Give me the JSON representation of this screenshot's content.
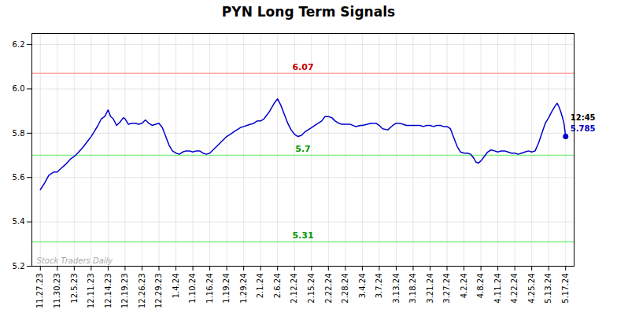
{
  "chart_data": {
    "type": "line",
    "title": "PYN Long Term Signals",
    "color": "#0000cc",
    "grid": true,
    "xlim": [
      -0.5,
      31.5
    ],
    "xticks": [
      {
        "value": 0,
        "label": "11.27.23"
      },
      {
        "value": 1,
        "label": "11.30.23"
      },
      {
        "value": 2,
        "label": "12.5.23"
      },
      {
        "value": 3,
        "label": "12.11.23"
      },
      {
        "value": 4,
        "label": "12.14.23"
      },
      {
        "value": 5,
        "label": "12.19.23"
      },
      {
        "value": 6,
        "label": "12.26.23"
      },
      {
        "value": 7,
        "label": "12.29.23"
      },
      {
        "value": 8,
        "label": "1.4.24"
      },
      {
        "value": 9,
        "label": "1.10.24"
      },
      {
        "value": 10,
        "label": "1.16.24"
      },
      {
        "value": 11,
        "label": "1.19.24"
      },
      {
        "value": 12,
        "label": "1.29.24"
      },
      {
        "value": 13,
        "label": "2.1.24"
      },
      {
        "value": 14,
        "label": "2.6.24"
      },
      {
        "value": 15,
        "label": "2.12.24"
      },
      {
        "value": 16,
        "label": "2.15.24"
      },
      {
        "value": 17,
        "label": "2.22.24"
      },
      {
        "value": 18,
        "label": "2.28.24"
      },
      {
        "value": 19,
        "label": "3.4.24"
      },
      {
        "value": 20,
        "label": "3.7.24"
      },
      {
        "value": 21,
        "label": "3.13.24"
      },
      {
        "value": 22,
        "label": "3.18.24"
      },
      {
        "value": 23,
        "label": "3.21.24"
      },
      {
        "value": 24,
        "label": "3.27.24"
      },
      {
        "value": 25,
        "label": "4.2.24"
      },
      {
        "value": 26,
        "label": "4.8.24"
      },
      {
        "value": 27,
        "label": "4.11.24"
      },
      {
        "value": 28,
        "label": "4.22.24"
      },
      {
        "value": 29,
        "label": "4.25.24"
      },
      {
        "value": 30,
        "label": "5.13.24"
      },
      {
        "value": 31,
        "label": "5.17.24"
      }
    ],
    "ylim": [
      5.2,
      6.25
    ],
    "yticks": [
      5.2,
      5.4,
      5.6,
      5.8,
      {
        "value": 6.0,
        "label": "6.0"
      },
      6.2
    ],
    "x": [
      0.0,
      0.25,
      0.5,
      0.8,
      1.0,
      1.2,
      1.5,
      1.8,
      2.0,
      2.2,
      2.5,
      2.8,
      3.0,
      3.2,
      3.4,
      3.6,
      3.8,
      4.0,
      4.15,
      4.3,
      4.5,
      4.7,
      4.9,
      5.0,
      5.2,
      5.4,
      5.6,
      5.8,
      6.0,
      6.2,
      6.4,
      6.6,
      6.8,
      7.0,
      7.2,
      7.4,
      7.6,
      7.8,
      8.0,
      8.2,
      8.4,
      8.6,
      8.8,
      9.0,
      9.2,
      9.4,
      9.6,
      9.8,
      10.0,
      10.2,
      10.4,
      10.6,
      10.8,
      11.0,
      11.2,
      11.4,
      11.6,
      11.8,
      12.0,
      12.2,
      12.4,
      12.6,
      12.8,
      13.0,
      13.2,
      13.5,
      13.8,
      14.0,
      14.2,
      14.4,
      14.6,
      14.8,
      15.0,
      15.2,
      15.4,
      15.6,
      15.8,
      16.0,
      16.2,
      16.4,
      16.6,
      16.8,
      17.0,
      17.2,
      17.4,
      17.6,
      17.8,
      18.0,
      18.3,
      18.6,
      18.9,
      19.0,
      19.3,
      19.5,
      19.8,
      20.0,
      20.2,
      20.5,
      20.8,
      21.0,
      21.2,
      21.4,
      21.6,
      21.8,
      22.0,
      22.2,
      22.4,
      22.6,
      22.8,
      23.0,
      23.2,
      23.4,
      23.6,
      23.8,
      24.0,
      24.2,
      24.4,
      24.6,
      24.8,
      25.0,
      25.2,
      25.4,
      25.5,
      25.6,
      25.7,
      25.85,
      26.0,
      26.2,
      26.4,
      26.6,
      26.8,
      27.0,
      27.2,
      27.4,
      27.6,
      27.8,
      28.0,
      28.2,
      28.4,
      28.6,
      28.8,
      29.0,
      29.2,
      29.4,
      29.6,
      29.8,
      30.0,
      30.2,
      30.4,
      30.5,
      30.6,
      30.7,
      30.8,
      30.9,
      31.0
    ],
    "values": [
      5.545,
      5.575,
      5.61,
      5.625,
      5.625,
      5.64,
      5.66,
      5.685,
      5.695,
      5.71,
      5.735,
      5.765,
      5.785,
      5.81,
      5.835,
      5.865,
      5.875,
      5.905,
      5.875,
      5.865,
      5.835,
      5.85,
      5.87,
      5.865,
      5.84,
      5.845,
      5.845,
      5.84,
      5.845,
      5.86,
      5.845,
      5.835,
      5.84,
      5.845,
      5.825,
      5.785,
      5.745,
      5.72,
      5.71,
      5.705,
      5.715,
      5.72,
      5.72,
      5.715,
      5.72,
      5.72,
      5.71,
      5.705,
      5.71,
      5.725,
      5.74,
      5.755,
      5.77,
      5.785,
      5.795,
      5.805,
      5.815,
      5.825,
      5.83,
      5.835,
      5.84,
      5.845,
      5.855,
      5.855,
      5.865,
      5.895,
      5.935,
      5.955,
      5.925,
      5.885,
      5.845,
      5.815,
      5.795,
      5.785,
      5.79,
      5.805,
      5.815,
      5.825,
      5.835,
      5.845,
      5.855,
      5.875,
      5.875,
      5.87,
      5.855,
      5.845,
      5.84,
      5.84,
      5.84,
      5.83,
      5.835,
      5.835,
      5.84,
      5.845,
      5.845,
      5.835,
      5.82,
      5.815,
      5.835,
      5.845,
      5.845,
      5.84,
      5.835,
      5.835,
      5.835,
      5.835,
      5.835,
      5.83,
      5.835,
      5.835,
      5.83,
      5.835,
      5.835,
      5.83,
      5.83,
      5.82,
      5.78,
      5.74,
      5.715,
      5.71,
      5.71,
      5.705,
      5.695,
      5.685,
      5.67,
      5.665,
      5.675,
      5.695,
      5.715,
      5.725,
      5.72,
      5.715,
      5.72,
      5.72,
      5.715,
      5.71,
      5.71,
      5.705,
      5.71,
      5.715,
      5.72,
      5.715,
      5.72,
      5.755,
      5.8,
      5.845,
      5.87,
      5.9,
      5.925,
      5.935,
      5.92,
      5.9,
      5.875,
      5.845,
      5.785
    ],
    "reference_lines": [
      {
        "value": 6.07,
        "label": "6.07",
        "color": "#ffaaaa",
        "label_color": "#cc0000"
      },
      {
        "value": 5.7,
        "label": "5.7",
        "color": "#88ee88",
        "label_color": "#009900"
      },
      {
        "value": 5.31,
        "label": "5.31",
        "color": "#88ee88",
        "label_color": "#009900"
      }
    ],
    "annotations": [
      {
        "text": "12:45",
        "color": "#000000"
      },
      {
        "text": "5.785",
        "color": "#0000cc"
      }
    ],
    "watermark": {
      "text": "Stock Traders Daily",
      "color": "#aaaaaa"
    }
  }
}
